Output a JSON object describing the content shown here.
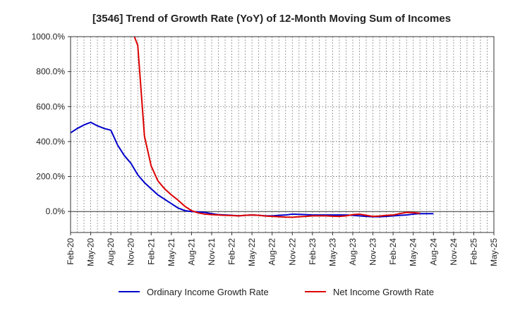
{
  "chart_data": {
    "type": "line",
    "title": "[3546]  Trend of Growth Rate (YoY) of 12-Month Moving Sum of Incomes",
    "xlabel": "",
    "ylabel": "",
    "ylim": [
      -120,
      1000
    ],
    "y_ticks": [
      0,
      200,
      400,
      600,
      800,
      1000
    ],
    "y_tick_labels": [
      "0.0%",
      "200.0%",
      "400.0%",
      "600.0%",
      "800.0%",
      "1000.0%"
    ],
    "x_ticks": [
      "Feb-20",
      "May-20",
      "Aug-20",
      "Nov-20",
      "Feb-21",
      "May-21",
      "Aug-21",
      "Nov-21",
      "Feb-22",
      "May-22",
      "Aug-22",
      "Nov-22",
      "Feb-23",
      "May-23",
      "Aug-23",
      "Nov-23",
      "Feb-24",
      "May-24",
      "Aug-24",
      "Nov-24",
      "Feb-25",
      "May-25"
    ],
    "x_start": "Feb-20",
    "x_months": 63,
    "grid": true,
    "legend_position": "bottom",
    "series": [
      {
        "name": "Ordinary Income Growth Rate",
        "color": "#0000cc",
        "values": [
          450,
          475,
          495,
          510,
          490,
          475,
          465,
          380,
          320,
          275,
          210,
          165,
          130,
          95,
          70,
          45,
          20,
          5,
          0,
          -2,
          -5,
          -12,
          -18,
          -20,
          -22,
          -25,
          -22,
          -20,
          -22,
          -25,
          -25,
          -22,
          -20,
          -15,
          -16,
          -18,
          -20,
          -20,
          -20,
          -20,
          -20,
          -20,
          -22,
          -25,
          -28,
          -30,
          -30,
          -28,
          -25,
          -22,
          -20,
          -15,
          -12,
          -12,
          -12
        ]
      },
      {
        "name": "Net Income Growth Rate",
        "color": "#dd0000",
        "values": [
          null,
          null,
          null,
          null,
          null,
          null,
          null,
          null,
          null,
          1050,
          950,
          430,
          260,
          175,
          130,
          95,
          65,
          30,
          5,
          -8,
          -15,
          -18,
          -20,
          -22,
          -23,
          -25,
          -22,
          -20,
          -22,
          -26,
          -28,
          -30,
          -32,
          -33,
          -30,
          -28,
          -25,
          -25,
          -25,
          -27,
          -28,
          -25,
          -18,
          -15,
          -22,
          -28,
          -26,
          -22,
          -20,
          -12,
          -5,
          -6,
          -10
        ]
      }
    ]
  }
}
